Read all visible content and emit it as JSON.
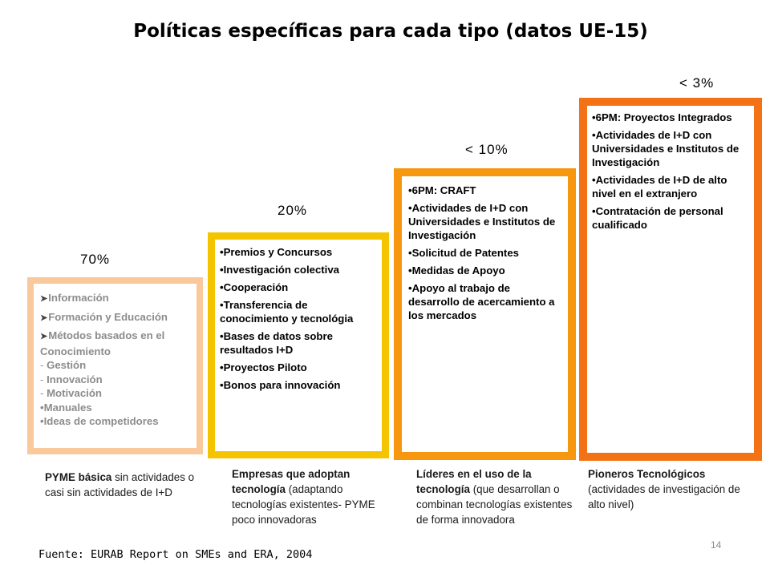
{
  "title": "Políticas específicas para cada tipo (datos UE-15)",
  "colors": {
    "box1": "#f9c89b",
    "box2": "#f5c400",
    "box3": "#f7960f",
    "box4": "#f47216"
  },
  "columns": [
    {
      "percent": "70%",
      "items": [
        "Información",
        "Formación y Educación",
        "Métodos basados en el Conocimiento",
        "Gestión",
        "Innovación",
        "Motivación",
        "Manuales",
        "Ideas de competidores"
      ],
      "caption_bold": "PYME básica",
      "caption_rest": " sin actividades o casi sin actividades de I+D"
    },
    {
      "percent": "20%",
      "items": [
        "Premios y Concursos",
        "Investigación colectiva",
        "Cooperación",
        "Transferencia de conocimiento y tecnológia",
        "Bases de datos sobre resultados I+D",
        "Proyectos Piloto",
        "Bonos para innovación"
      ],
      "caption_bold": "Empresas que adoptan tecnología",
      "caption_rest": " (adaptando tecnologías existentes- PYME poco innovadoras"
    },
    {
      "percent": "< 10%",
      "items": [
        "6PM: CRAFT",
        "Actividades de I+D con Universidades e Institutos de Investigación",
        "Solicitud de Patentes",
        "Medidas de Apoyo",
        "Apoyo al trabajo de desarrollo de acercamiento a los mercados"
      ],
      "caption_bold": "Líderes en el uso de la tecnología",
      "caption_rest": " (que desarrollan o combinan tecnologías existentes de forma innovadora"
    },
    {
      "percent": "< 3%",
      "items": [
        "6PM: Proyectos Integrados",
        "Actividades de I+D con Universidades e Institutos de Investigación",
        "Actividades de I+D de alto nivel en el extranjero",
        "Contratación de personal cualificado"
      ],
      "caption_bold": "Pioneros Tecnológicos",
      "caption_rest": "(actividades de investigación de alto nivel)"
    }
  ],
  "source": "Fuente: EURAB Report on SMEs and ERA, 2004",
  "page_number": "14"
}
